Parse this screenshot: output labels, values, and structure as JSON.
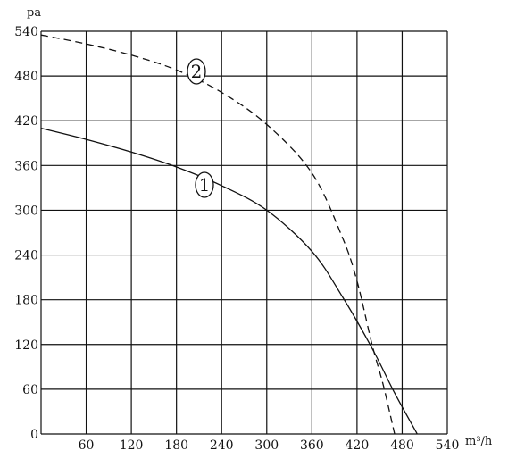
{
  "chart_data": {
    "type": "line",
    "ylabel": "pa",
    "xlabel": "m³/h",
    "xlim": [
      0,
      540
    ],
    "ylim": [
      0,
      540
    ],
    "x_ticks": [
      60,
      120,
      180,
      240,
      300,
      360,
      420,
      480,
      540
    ],
    "y_ticks": [
      0,
      60,
      120,
      180,
      240,
      300,
      360,
      420,
      480,
      540
    ],
    "grid": true,
    "series": [
      {
        "name": "1",
        "style": "solid",
        "x": [
          0,
          60,
          120,
          180,
          240,
          300,
          360,
          400,
          440,
          470,
          500
        ],
        "y": [
          410,
          395,
          378,
          358,
          333,
          300,
          245,
          185,
          115,
          55,
          0
        ]
      },
      {
        "name": "2",
        "style": "dashed",
        "x": [
          0,
          60,
          120,
          180,
          240,
          300,
          360,
          400,
          420,
          440,
          455,
          470
        ],
        "y": [
          535,
          523,
          508,
          488,
          458,
          415,
          350,
          265,
          205,
          120,
          65,
          0
        ]
      }
    ]
  }
}
